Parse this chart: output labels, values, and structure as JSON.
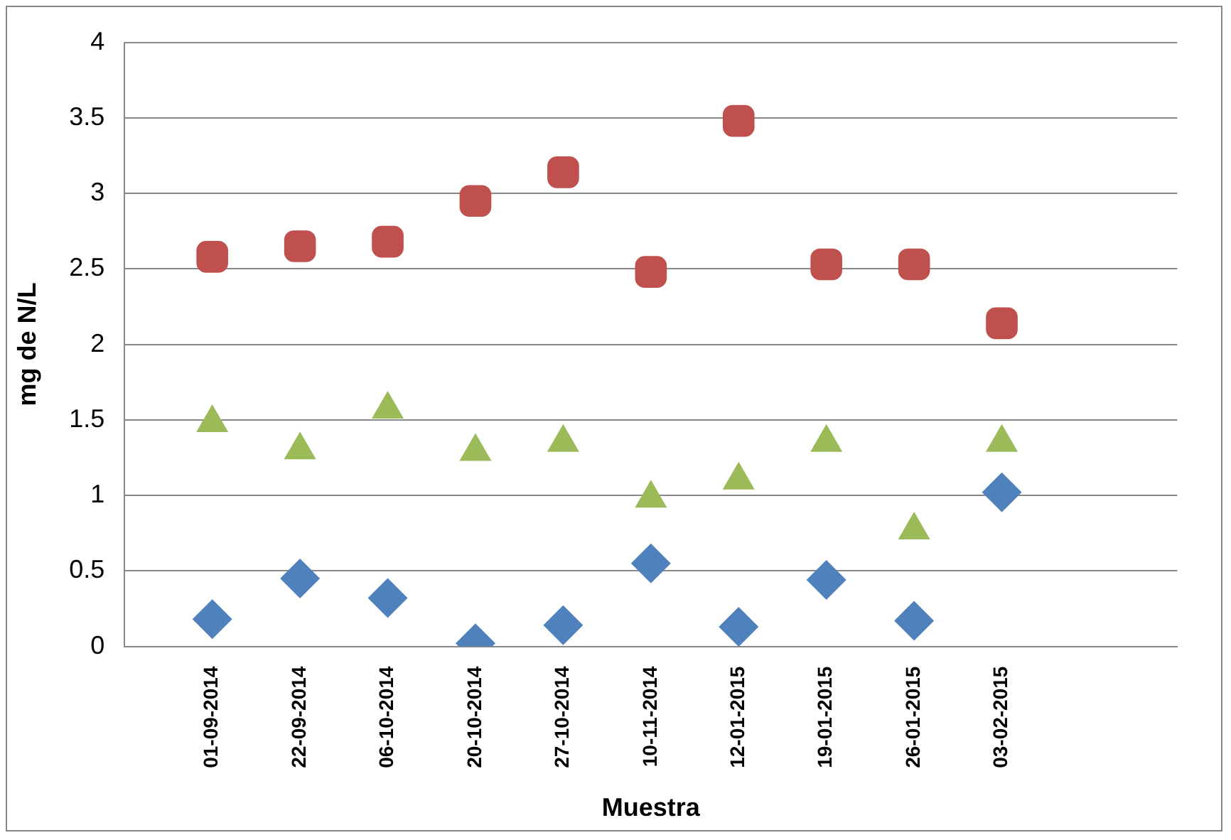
{
  "chart_data": {
    "type": "scatter",
    "xlabel": "Muestra",
    "ylabel": "mg de N/L",
    "categories": [
      null,
      "01-09-2014",
      "22-09-2014",
      "06-10-2014",
      "20-10-2014",
      "27-10-2014",
      "10-11-2014",
      "12-01-2015",
      "19-01-2015",
      "26-01-2015",
      "03-02-2015",
      null,
      null
    ],
    "series": [
      {
        "color": "#4f81bd",
        "marker": "diamond",
        "values": [
          null,
          0.18,
          0.45,
          0.32,
          0.02,
          0.14,
          0.55,
          0.13,
          0.44,
          0.17,
          1.02,
          null,
          null
        ]
      },
      {
        "color": "#c0504d",
        "marker": "square",
        "values": [
          null,
          2.58,
          2.65,
          2.68,
          2.95,
          3.14,
          2.48,
          3.48,
          2.53,
          2.53,
          2.14,
          null,
          null
        ]
      },
      {
        "color": "#9bbb59",
        "marker": "triangle",
        "values": [
          null,
          1.48,
          1.3,
          1.57,
          1.29,
          1.35,
          0.98,
          1.1,
          1.35,
          0.77,
          1.35,
          null,
          null
        ]
      }
    ],
    "ylim": [
      0,
      4
    ],
    "yticks": [
      0,
      0.5,
      1,
      1.5,
      2,
      2.5,
      3,
      3.5,
      4
    ],
    "grid": "y",
    "legend": false
  }
}
